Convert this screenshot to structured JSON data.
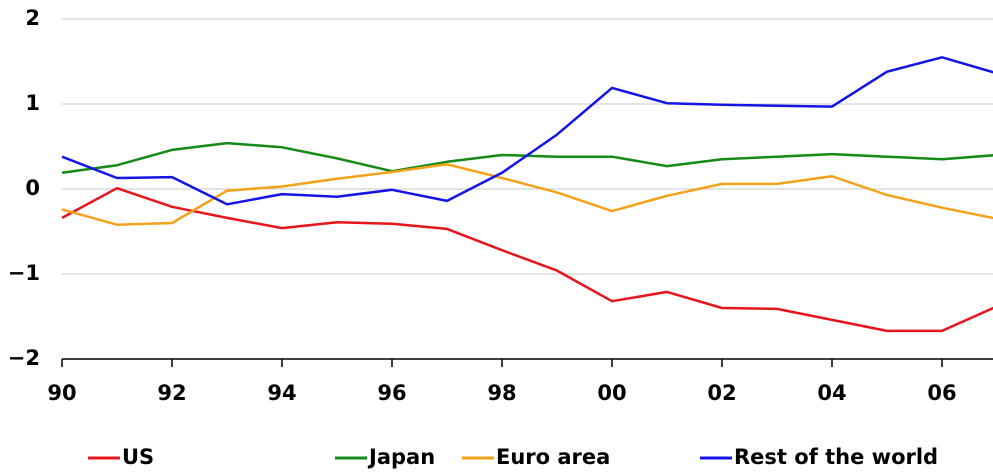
{
  "chart_data": {
    "type": "line",
    "x": [
      1990,
      1991,
      1992,
      1993,
      1994,
      1995,
      1996,
      1997,
      1998,
      1999,
      2000,
      2001,
      2002,
      2003,
      2004,
      2005,
      2006,
      2007
    ],
    "series": [
      {
        "name": "US",
        "color": "#e8141b",
        "values": [
          -0.34,
          0.01,
          -0.21,
          -0.34,
          -0.46,
          -0.39,
          -0.41,
          -0.47,
          -0.72,
          -0.96,
          -1.32,
          -1.21,
          -1.4,
          -1.41,
          -1.54,
          -1.67,
          -1.67,
          -1.38
        ]
      },
      {
        "name": "Japan",
        "color": "#158a16",
        "values": [
          0.19,
          0.28,
          0.46,
          0.54,
          0.49,
          0.36,
          0.21,
          0.32,
          0.4,
          0.38,
          0.38,
          0.27,
          0.35,
          0.38,
          0.41,
          0.38,
          0.35,
          0.4
        ]
      },
      {
        "name": "Euro area",
        "color": "#f5a21b",
        "values": [
          -0.24,
          -0.42,
          -0.4,
          -0.02,
          0.03,
          0.12,
          0.2,
          0.29,
          0.13,
          -0.04,
          -0.26,
          -0.08,
          0.06,
          0.06,
          0.15,
          -0.07,
          -0.22,
          -0.35
        ]
      },
      {
        "name": "Rest of the world",
        "color": "#1414e6",
        "values": [
          0.38,
          0.13,
          0.14,
          -0.18,
          -0.06,
          -0.09,
          -0.01,
          -0.14,
          0.19,
          0.64,
          1.19,
          1.01,
          0.99,
          0.98,
          0.97,
          1.38,
          1.55,
          1.36
        ]
      }
    ],
    "xlim": [
      1990,
      2007
    ],
    "xticks": [
      {
        "value": 1990,
        "label": "90"
      },
      {
        "value": 1992,
        "label": "92"
      },
      {
        "value": 1994,
        "label": "94"
      },
      {
        "value": 1996,
        "label": "96"
      },
      {
        "value": 1998,
        "label": "98"
      },
      {
        "value": 2000,
        "label": "00"
      },
      {
        "value": 2002,
        "label": "02"
      },
      {
        "value": 2004,
        "label": "04"
      },
      {
        "value": 2006,
        "label": "06"
      }
    ],
    "ylim": [
      -2,
      2
    ],
    "yticks": [
      {
        "value": -2,
        "label": "−2"
      },
      {
        "value": -1,
        "label": "−1"
      },
      0,
      1,
      2
    ],
    "grid": true,
    "legend": "bottom"
  }
}
